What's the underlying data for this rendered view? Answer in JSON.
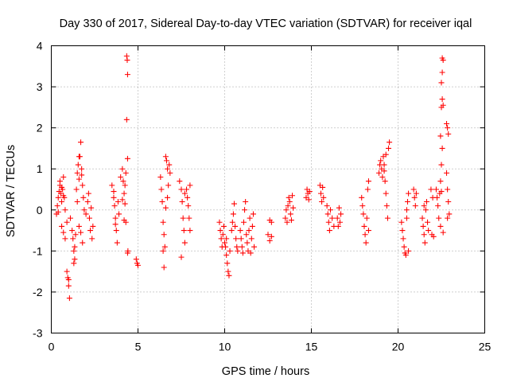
{
  "chart_data": {
    "type": "scatter",
    "title": "Day 330 of 2017, Sidereal Day-to-day VTEC variation (SDTVAR) for receiver iqal",
    "xlabel": "GPS time / hours",
    "ylabel": "SDTVAR / TECUs",
    "xlim": [
      0,
      25
    ],
    "ylim": [
      -3,
      4
    ],
    "xticks": [
      0,
      5,
      10,
      15,
      20,
      25
    ],
    "yticks": [
      -3,
      -2,
      -1,
      0,
      1,
      2,
      3,
      4
    ],
    "xtick_labels": [
      "0",
      "5",
      "10",
      "15",
      "20",
      "25"
    ],
    "ytick_labels": [
      "-3",
      "-2",
      "-1",
      "0",
      "1",
      "2",
      "3",
      "4"
    ],
    "grid": true,
    "marker": "+",
    "marker_color": "#ff0000",
    "series": [
      {
        "name": "SDTVAR",
        "points": [
          [
            0.3,
            -0.1
          ],
          [
            0.35,
            0.1
          ],
          [
            0.4,
            0.3
          ],
          [
            0.45,
            0.45
          ],
          [
            0.5,
            0.6
          ],
          [
            0.55,
            0.4
          ],
          [
            0.6,
            0.2
          ],
          [
            0.65,
            0.5
          ],
          [
            0.7,
            0.8
          ],
          [
            0.75,
            0.3
          ],
          [
            0.8,
            0.0
          ],
          [
            0.4,
            -0.05
          ],
          [
            0.5,
            0.7
          ],
          [
            0.6,
            0.55
          ],
          [
            0.7,
            0.35
          ],
          [
            0.6,
            -0.4
          ],
          [
            0.7,
            -0.55
          ],
          [
            0.8,
            -0.7
          ],
          [
            0.9,
            -0.3
          ],
          [
            0.9,
            -1.5
          ],
          [
            0.95,
            -1.65
          ],
          [
            1.0,
            -1.85
          ],
          [
            1.05,
            -2.15
          ],
          [
            1.0,
            -1.7
          ],
          [
            1.1,
            -0.2
          ],
          [
            1.2,
            -0.5
          ],
          [
            1.25,
            -0.7
          ],
          [
            1.3,
            -1.0
          ],
          [
            1.35,
            -1.2
          ],
          [
            1.3,
            -1.3
          ],
          [
            1.35,
            -0.9
          ],
          [
            1.4,
            -0.6
          ],
          [
            1.45,
            0.5
          ],
          [
            1.5,
            0.9
          ],
          [
            1.55,
            1.1
          ],
          [
            1.6,
            1.3
          ],
          [
            1.65,
            1.3
          ],
          [
            1.7,
            1.65
          ],
          [
            1.75,
            1.0
          ],
          [
            1.8,
            0.6
          ],
          [
            1.85,
            0.3
          ],
          [
            1.9,
            0.0
          ],
          [
            1.6,
            -0.4
          ],
          [
            1.7,
            -0.55
          ],
          [
            1.8,
            -0.8
          ],
          [
            1.5,
            0.2
          ],
          [
            1.6,
            0.75
          ],
          [
            1.75,
            0.85
          ],
          [
            2.0,
            -0.1
          ],
          [
            2.1,
            0.2
          ],
          [
            2.15,
            0.4
          ],
          [
            2.2,
            -0.2
          ],
          [
            2.25,
            -0.5
          ],
          [
            2.3,
            0.05
          ],
          [
            2.35,
            -0.7
          ],
          [
            2.4,
            -0.4
          ],
          [
            3.5,
            0.6
          ],
          [
            3.6,
            0.3
          ],
          [
            3.65,
            0.1
          ],
          [
            3.7,
            -0.2
          ],
          [
            3.75,
            -0.5
          ],
          [
            3.8,
            -0.8
          ],
          [
            3.85,
            0.2
          ],
          [
            3.9,
            -0.1
          ],
          [
            3.6,
            0.45
          ],
          [
            3.7,
            -0.35
          ],
          [
            4.0,
            0.8
          ],
          [
            4.1,
            1.0
          ],
          [
            4.15,
            0.7
          ],
          [
            4.2,
            0.4
          ],
          [
            4.25,
            0.6
          ],
          [
            4.3,
            0.9
          ],
          [
            4.2,
            -0.25
          ],
          [
            4.3,
            -0.3
          ],
          [
            4.25,
            0.15
          ],
          [
            4.1,
            0.25
          ],
          [
            4.35,
            3.75
          ],
          [
            4.38,
            3.65
          ],
          [
            4.4,
            3.3
          ],
          [
            4.35,
            2.2
          ],
          [
            4.4,
            1.25
          ],
          [
            4.42,
            -1.0
          ],
          [
            4.4,
            -1.05
          ],
          [
            4.9,
            -1.2
          ],
          [
            4.95,
            -1.3
          ],
          [
            5.0,
            -1.35
          ],
          [
            6.3,
            0.8
          ],
          [
            6.35,
            0.5
          ],
          [
            6.4,
            0.2
          ],
          [
            6.45,
            -0.3
          ],
          [
            6.5,
            -0.6
          ],
          [
            6.55,
            -0.9
          ],
          [
            6.45,
            -1.0
          ],
          [
            6.5,
            -1.4
          ],
          [
            6.6,
            1.3
          ],
          [
            6.65,
            1.2
          ],
          [
            6.7,
            1.0
          ],
          [
            6.75,
            0.6
          ],
          [
            6.7,
            0.3
          ],
          [
            6.6,
            0.05
          ],
          [
            6.8,
            1.1
          ],
          [
            6.85,
            0.9
          ],
          [
            7.4,
            0.7
          ],
          [
            7.5,
            0.5
          ],
          [
            7.55,
            0.2
          ],
          [
            7.6,
            -0.2
          ],
          [
            7.65,
            -0.5
          ],
          [
            7.7,
            -0.8
          ],
          [
            7.5,
            -1.15
          ],
          [
            7.8,
            0.5
          ],
          [
            7.85,
            0.3
          ],
          [
            7.9,
            0.1
          ],
          [
            7.95,
            -0.2
          ],
          [
            8.0,
            -0.5
          ],
          [
            8.0,
            0.6
          ],
          [
            7.7,
            0.4
          ],
          [
            9.7,
            -0.3
          ],
          [
            9.75,
            -0.5
          ],
          [
            9.8,
            -0.7
          ],
          [
            9.85,
            -0.9
          ],
          [
            9.9,
            -0.6
          ],
          [
            9.95,
            -0.4
          ],
          [
            10.0,
            -0.8
          ],
          [
            10.05,
            -0.9
          ],
          [
            10.1,
            -1.1
          ],
          [
            10.15,
            -1.3
          ],
          [
            10.2,
            -1.5
          ],
          [
            10.25,
            -1.6
          ],
          [
            10.1,
            -0.7
          ],
          [
            10.3,
            -1.0
          ],
          [
            10.4,
            -0.5
          ],
          [
            10.45,
            -0.3
          ],
          [
            10.5,
            -0.1
          ],
          [
            10.55,
            0.15
          ],
          [
            10.6,
            -0.4
          ],
          [
            10.65,
            -0.7
          ],
          [
            10.7,
            -0.9
          ],
          [
            10.75,
            -1.0
          ],
          [
            10.9,
            -0.5
          ],
          [
            10.95,
            -0.7
          ],
          [
            11.0,
            -0.9
          ],
          [
            11.05,
            -1.05
          ],
          [
            11.1,
            -0.3
          ],
          [
            11.15,
            0.0
          ],
          [
            11.2,
            0.2
          ],
          [
            11.25,
            -0.6
          ],
          [
            11.3,
            -0.8
          ],
          [
            11.35,
            -1.0
          ],
          [
            11.4,
            -0.5
          ],
          [
            11.45,
            -0.2
          ],
          [
            11.5,
            -1.05
          ],
          [
            11.55,
            -0.7
          ],
          [
            11.6,
            -0.4
          ],
          [
            11.65,
            -0.1
          ],
          [
            11.7,
            -0.9
          ],
          [
            12.5,
            -0.6
          ],
          [
            12.6,
            -0.75
          ],
          [
            12.7,
            -0.65
          ],
          [
            12.6,
            -0.25
          ],
          [
            12.7,
            -0.3
          ],
          [
            13.5,
            -0.2
          ],
          [
            13.55,
            0.0
          ],
          [
            13.6,
            -0.3
          ],
          [
            13.65,
            0.1
          ],
          [
            13.7,
            0.3
          ],
          [
            13.75,
            0.2
          ],
          [
            13.8,
            -0.1
          ],
          [
            13.85,
            -0.25
          ],
          [
            13.9,
            0.35
          ],
          [
            13.95,
            0.05
          ],
          [
            14.7,
            0.3
          ],
          [
            14.75,
            0.5
          ],
          [
            14.8,
            0.4
          ],
          [
            14.85,
            0.25
          ],
          [
            14.9,
            0.45
          ],
          [
            15.5,
            0.6
          ],
          [
            15.55,
            0.4
          ],
          [
            15.6,
            0.2
          ],
          [
            15.65,
            0.55
          ],
          [
            15.7,
            0.3
          ],
          [
            15.9,
            0.1
          ],
          [
            15.95,
            -0.1
          ],
          [
            16.0,
            -0.3
          ],
          [
            16.05,
            -0.5
          ],
          [
            16.1,
            0.0
          ],
          [
            16.2,
            -0.2
          ],
          [
            16.3,
            -0.4
          ],
          [
            16.5,
            -0.2
          ],
          [
            16.55,
            -0.4
          ],
          [
            16.6,
            0.05
          ],
          [
            16.65,
            -0.3
          ],
          [
            16.7,
            -0.1
          ],
          [
            17.9,
            0.3
          ],
          [
            17.95,
            0.1
          ],
          [
            18.0,
            -0.1
          ],
          [
            18.05,
            -0.4
          ],
          [
            18.1,
            -0.6
          ],
          [
            18.15,
            -0.8
          ],
          [
            18.2,
            -0.2
          ],
          [
            18.25,
            0.5
          ],
          [
            18.3,
            0.7
          ],
          [
            18.3,
            -0.5
          ],
          [
            18.9,
            0.9
          ],
          [
            18.95,
            1.1
          ],
          [
            19.0,
            1.2
          ],
          [
            19.05,
            1.0
          ],
          [
            19.1,
            0.8
          ],
          [
            19.15,
            1.3
          ],
          [
            19.2,
            1.1
          ],
          [
            19.25,
            0.7
          ],
          [
            19.3,
            0.4
          ],
          [
            19.35,
            0.1
          ],
          [
            19.4,
            -0.2
          ],
          [
            19.45,
            1.5
          ],
          [
            19.5,
            1.65
          ],
          [
            19.3,
            1.35
          ],
          [
            19.2,
            0.95
          ],
          [
            20.2,
            -0.3
          ],
          [
            20.25,
            -0.5
          ],
          [
            20.3,
            -0.7
          ],
          [
            20.35,
            -0.9
          ],
          [
            20.4,
            -1.05
          ],
          [
            20.45,
            -1.1
          ],
          [
            20.5,
            0.0
          ],
          [
            20.55,
            0.2
          ],
          [
            20.6,
            0.4
          ],
          [
            20.5,
            -0.2
          ],
          [
            20.6,
            -1.0
          ],
          [
            20.9,
            0.5
          ],
          [
            20.95,
            0.3
          ],
          [
            21.0,
            0.1
          ],
          [
            21.05,
            0.4
          ],
          [
            21.4,
            -0.2
          ],
          [
            21.45,
            -0.4
          ],
          [
            21.5,
            -0.6
          ],
          [
            21.55,
            -0.8
          ],
          [
            21.6,
            0.0
          ],
          [
            21.65,
            0.2
          ],
          [
            21.7,
            -0.3
          ],
          [
            21.75,
            -0.5
          ],
          [
            21.5,
            0.1
          ],
          [
            21.9,
            0.5
          ],
          [
            22.0,
            0.3
          ],
          [
            21.95,
            -0.6
          ],
          [
            22.05,
            -0.65
          ],
          [
            22.2,
            0.5
          ],
          [
            22.25,
            0.3
          ],
          [
            22.3,
            0.1
          ],
          [
            22.35,
            -0.2
          ],
          [
            22.4,
            0.4
          ],
          [
            22.45,
            0.7
          ],
          [
            22.5,
            1.1
          ],
          [
            22.55,
            1.5
          ],
          [
            22.45,
            -0.4
          ],
          [
            22.6,
            -0.55
          ],
          [
            22.5,
            0.45
          ],
          [
            22.5,
            2.5
          ],
          [
            22.55,
            2.7
          ],
          [
            22.6,
            2.55
          ],
          [
            22.5,
            3.1
          ],
          [
            22.55,
            3.35
          ],
          [
            22.6,
            3.65
          ],
          [
            22.55,
            3.7
          ],
          [
            22.45,
            1.8
          ],
          [
            22.8,
            2.1
          ],
          [
            22.85,
            2.0
          ],
          [
            22.9,
            1.85
          ],
          [
            22.8,
            0.9
          ],
          [
            22.85,
            0.5
          ],
          [
            22.9,
            0.2
          ],
          [
            22.95,
            -0.1
          ],
          [
            22.85,
            -0.2
          ]
        ]
      }
    ]
  }
}
